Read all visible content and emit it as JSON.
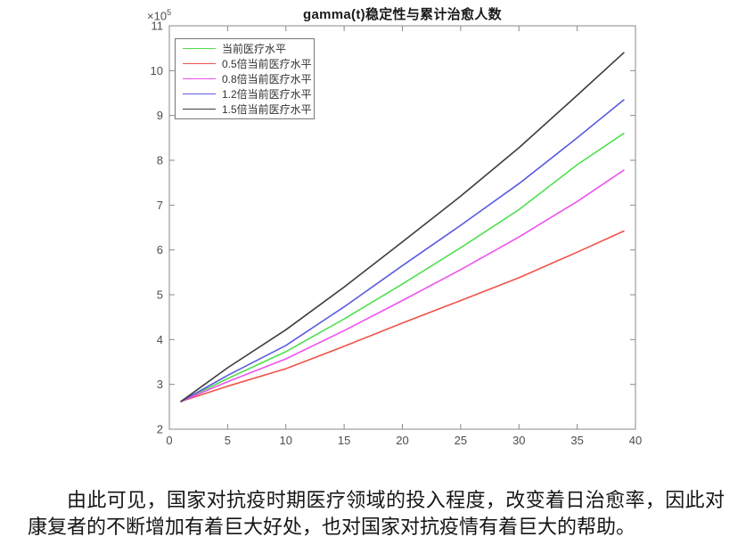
{
  "chart_data": {
    "type": "line",
    "title": "gamma(t)稳定性与累计治愈人数",
    "y_exponent_base": "×10",
    "y_exponent_power": "5",
    "xlabel": "",
    "ylabel": "",
    "grid": false,
    "legend_position": "upper-left-inside",
    "xlim": [
      0,
      40
    ],
    "ylim_times_1e5": [
      2,
      11
    ],
    "xticks": [
      0,
      5,
      10,
      15,
      20,
      25,
      30,
      35,
      40
    ],
    "yticks_times_1e5": [
      2,
      3,
      4,
      5,
      6,
      7,
      8,
      9,
      10,
      11
    ],
    "x": [
      1,
      5,
      10,
      15,
      20,
      25,
      30,
      35,
      39
    ],
    "series": [
      {
        "name": "当前医疗水平",
        "color": "#4fdf4f",
        "values_times_1e5": [
          2.62,
          3.13,
          3.73,
          4.46,
          5.24,
          6.05,
          6.9,
          7.9,
          8.6
        ]
      },
      {
        "name": "0.5倍当前医疗水平",
        "color": "#f0524a",
        "values_times_1e5": [
          2.62,
          2.96,
          3.35,
          3.85,
          4.37,
          4.87,
          5.38,
          5.95,
          6.42
        ]
      },
      {
        "name": "0.8倍当前医疗水平",
        "color": "#ee52ee",
        "values_times_1e5": [
          2.62,
          3.06,
          3.57,
          4.2,
          4.87,
          5.56,
          6.29,
          7.08,
          7.78
        ]
      },
      {
        "name": "1.2倍当前医疗水平",
        "color": "#5a5ae0",
        "values_times_1e5": [
          2.62,
          3.2,
          3.87,
          4.73,
          5.65,
          6.55,
          7.48,
          8.5,
          9.35
        ]
      },
      {
        "name": "1.5倍当前医疗水平",
        "color": "#3d3d3d",
        "values_times_1e5": [
          2.62,
          3.37,
          4.22,
          5.17,
          6.18,
          7.2,
          8.28,
          9.45,
          10.4
        ]
      }
    ],
    "axis_color": "#8a8a8a",
    "tick_label_color": "#4d4d4d"
  },
  "paragraph": {
    "text": "由此可见，国家对抗疫时期医疗领域的投入程度，改变着日治愈率，因此对康复者的不断增加有着巨大好处，也对国家对抗疫情有着巨大的帮助。"
  }
}
